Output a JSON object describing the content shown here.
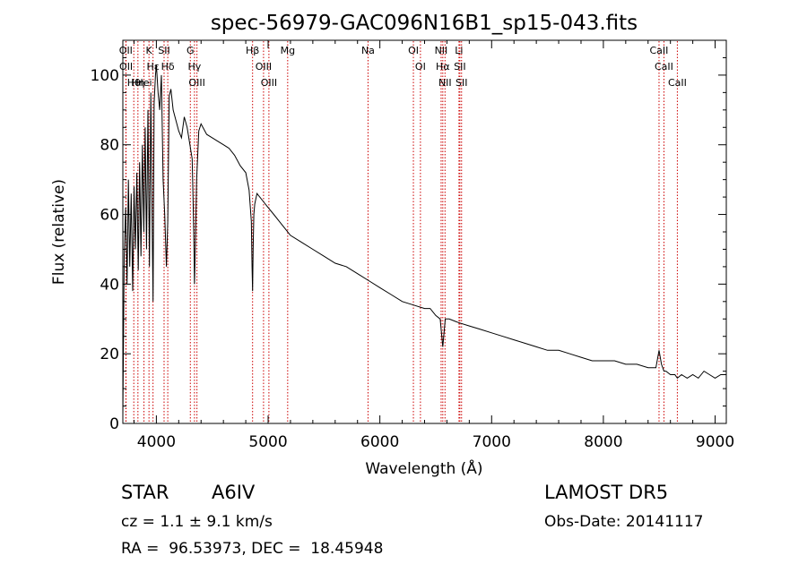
{
  "chart_data": {
    "type": "line",
    "title": "spec-56979-GAC096N16B1_sp15-043.fits",
    "xlabel": "Wavelength (Å)",
    "ylabel": "Flux (relative)",
    "xlim": [
      3700,
      9100
    ],
    "ylim": [
      0,
      110
    ],
    "x_ticks": [
      4000,
      5000,
      6000,
      7000,
      8000,
      9000
    ],
    "x_tick_labels": [
      "4000",
      "5000",
      "6000",
      "7000",
      "8000",
      "9000"
    ],
    "y_ticks": [
      0,
      20,
      40,
      60,
      80,
      100
    ],
    "y_tick_labels": [
      "0",
      "20",
      "40",
      "60",
      "80",
      "100"
    ],
    "line_color": "#000000",
    "line_marker_color": "#cc0000",
    "grid": false,
    "series": [
      {
        "x": [
          3700,
          3712,
          3725,
          3738,
          3750,
          3762,
          3775,
          3788,
          3800,
          3812,
          3825,
          3838,
          3850,
          3862,
          3875,
          3888,
          3900,
          3912,
          3925,
          3938,
          3950,
          3962,
          3970,
          3980,
          3992,
          4000,
          4015,
          4030,
          4045,
          4060,
          4075,
          4090,
          4102,
          4115,
          4130,
          4150,
          4175,
          4200,
          4225,
          4250,
          4275,
          4300,
          4320,
          4335,
          4341,
          4348,
          4360,
          4380,
          4400,
          4450,
          4500,
          4550,
          4600,
          4650,
          4700,
          4750,
          4800,
          4830,
          4850,
          4856,
          4861,
          4866,
          4872,
          4880,
          4900,
          4950,
          5000,
          5050,
          5100,
          5150,
          5200,
          5300,
          5400,
          5500,
          5600,
          5700,
          5800,
          5900,
          6000,
          6100,
          6200,
          6300,
          6400,
          6450,
          6500,
          6540,
          6563,
          6585,
          6620,
          6700,
          6800,
          6900,
          7000,
          7100,
          7200,
          7300,
          7400,
          7500,
          7600,
          7700,
          7800,
          7900,
          8000,
          8100,
          8200,
          8300,
          8400,
          8470,
          8498,
          8520,
          8542,
          8560,
          8600,
          8640,
          8662,
          8700,
          8750,
          8800,
          8850,
          8900,
          8950,
          9000,
          9050,
          9100
        ],
        "y": [
          2,
          48,
          62,
          40,
          70,
          45,
          66,
          38,
          68,
          50,
          72,
          44,
          75,
          48,
          80,
          55,
          85,
          50,
          90,
          45,
          95,
          58,
          35,
          92,
          100,
          103,
          95,
          90,
          100,
          70,
          60,
          45,
          58,
          94,
          96,
          90,
          87,
          84,
          82,
          88,
          85,
          80,
          76,
          55,
          40,
          50,
          70,
          84,
          86,
          83,
          82,
          81,
          80,
          79,
          77,
          74,
          72,
          67,
          58,
          45,
          38,
          50,
          60,
          63,
          66,
          64,
          62,
          60,
          58,
          56,
          54,
          52,
          50,
          48,
          46,
          45,
          43,
          41,
          39,
          37,
          35,
          34,
          33,
          33,
          31,
          30,
          22,
          30,
          30,
          29,
          28,
          27,
          26,
          25,
          24,
          23,
          22,
          21,
          21,
          20,
          19,
          18,
          18,
          18,
          17,
          17,
          16,
          16,
          21,
          17,
          15,
          15,
          14,
          14,
          13,
          14,
          13,
          14,
          13,
          15,
          14,
          13,
          14,
          14
        ]
      }
    ],
    "lines": [
      {
        "label": "Hθ",
        "wavelength": 3798
      },
      {
        "label": "OII",
        "wavelength": 3727
      },
      {
        "label": "OII",
        "wavelength": 3729
      },
      {
        "label": "Hei",
        "wavelength": 3889
      },
      {
        "label": "Hη",
        "wavelength": 3835
      },
      {
        "label": "Hε",
        "wavelength": 3970
      },
      {
        "label": "K",
        "wavelength": 3934
      },
      {
        "label": "SII",
        "wavelength": 4069
      },
      {
        "label": "Hδ",
        "wavelength": 4102
      },
      {
        "label": "OIII",
        "wavelength": 4363
      },
      {
        "label": "Hγ",
        "wavelength": 4341
      },
      {
        "label": "G",
        "wavelength": 4304
      },
      {
        "label": "OIII",
        "wavelength": 4959
      },
      {
        "label": "OIII",
        "wavelength": 5007
      },
      {
        "label": "Hβ",
        "wavelength": 4861
      },
      {
        "label": "Mg",
        "wavelength": 5175
      },
      {
        "label": "Na",
        "wavelength": 5894
      },
      {
        "label": "OI",
        "wavelength": 6300
      },
      {
        "label": "OI",
        "wavelength": 6363
      },
      {
        "label": "Hα",
        "wavelength": 6563
      },
      {
        "label": "NII",
        "wavelength": 6548
      },
      {
        "label": "NII",
        "wavelength": 6583
      },
      {
        "label": "SII",
        "wavelength": 6716
      },
      {
        "label": "Li",
        "wavelength": 6708
      },
      {
        "label": "SII",
        "wavelength": 6731
      },
      {
        "label": "CaII",
        "wavelength": 8542
      },
      {
        "label": "CaII",
        "wavelength": 8498
      },
      {
        "label": "CaII",
        "wavelength": 8662
      }
    ]
  },
  "info": {
    "object_class": "STAR",
    "subclass": "A6IV",
    "survey": "LAMOST DR5",
    "cz": "cz = 1.1 ± 9.1 km/s",
    "obs_date": "Obs-Date: 20141117",
    "radec": "RA =  96.53973, DEC =  18.45948"
  }
}
